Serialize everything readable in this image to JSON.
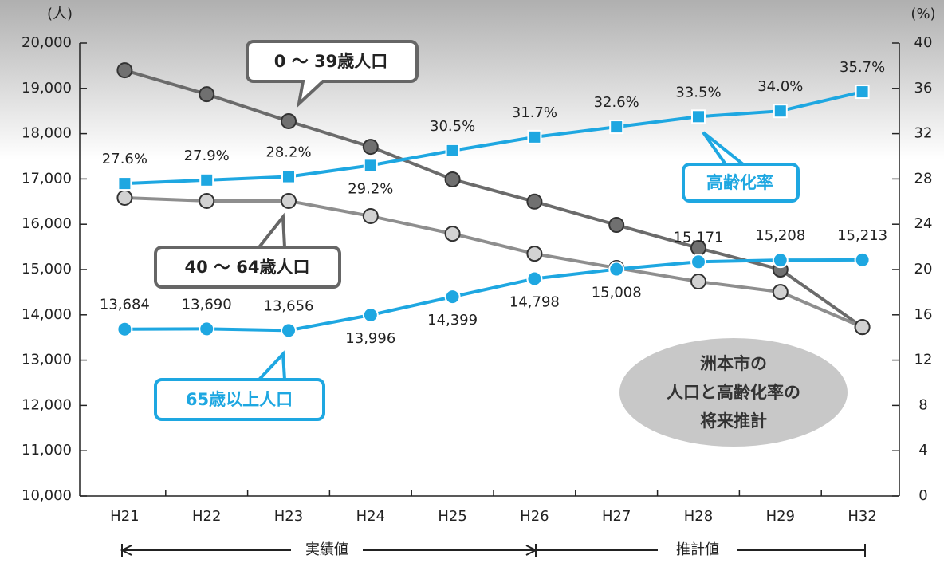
{
  "chart_data": {
    "type": "line",
    "title": [
      "洲本市の",
      "人口と高齢化率の",
      "将来推計"
    ],
    "y_label": "(人)",
    "y2_label": "(%)",
    "annotations": [
      "実績値",
      "推計値"
    ],
    "categories": [
      "H21",
      "H22",
      "H23",
      "H24",
      "H25",
      "H26",
      "H27",
      "H28",
      "H29",
      "H32"
    ],
    "ylim": [
      10000,
      20000
    ],
    "yticks": [
      {
        "value": 10000,
        "label": "10,000"
      },
      {
        "value": 11000,
        "label": "11,000"
      },
      {
        "value": 12000,
        "label": "12,000"
      },
      {
        "value": 13000,
        "label": "13,000"
      },
      {
        "value": 14000,
        "label": "14,000"
      },
      {
        "value": 15000,
        "label": "15,000"
      },
      {
        "value": 16000,
        "label": "16,000"
      },
      {
        "value": 17000,
        "label": "17,000"
      },
      {
        "value": 18000,
        "label": "18,000"
      },
      {
        "value": 19000,
        "label": "19,000"
      },
      {
        "value": 20000,
        "label": "20,000"
      }
    ],
    "y2lim": [
      0,
      40
    ],
    "y2ticks": [
      0,
      4,
      8,
      12,
      16,
      20,
      24,
      28,
      32,
      36,
      40
    ],
    "series": [
      {
        "name": "0 ～ 39歳人口",
        "color": "#6b6b6b",
        "marker_fill": "#707070",
        "values": [
          19400,
          18870,
          18275,
          17710,
          16990,
          16500,
          15985,
          15475,
          15000,
          13730
        ]
      },
      {
        "name": "40 ～ 64歳人口",
        "color": "#8e8e8e",
        "marker_fill": "#d2d2d2",
        "values": [
          16585,
          16515,
          16515,
          16180,
          15790,
          15350,
          15035,
          14735,
          14505,
          13730
        ]
      },
      {
        "name": "65歳以上人口",
        "color": "#1ea7e1",
        "marker_fill": "#1ea7e1",
        "values": [
          13684,
          13690,
          13656,
          13996,
          14399,
          14798,
          15008,
          15171,
          15208,
          15213
        ],
        "value_labels": [
          "13,684",
          "13,690",
          "13,656",
          "13,996",
          "14,399",
          "14,798",
          "15,008",
          "15,171",
          "15,208",
          "15,213"
        ]
      },
      {
        "name": "高齢化率",
        "color": "#1ea7e1",
        "marker_fill": "#1ea7e1",
        "axis": "y2",
        "values": [
          27.6,
          27.9,
          28.2,
          29.2,
          30.5,
          31.7,
          32.6,
          33.5,
          34.0,
          35.7
        ],
        "value_labels": [
          "27.6%",
          "27.9%",
          "28.2%",
          "29.2%",
          "30.5%",
          "31.7%",
          "32.6%",
          "33.5%",
          "34.0%",
          "35.7%"
        ]
      }
    ]
  }
}
